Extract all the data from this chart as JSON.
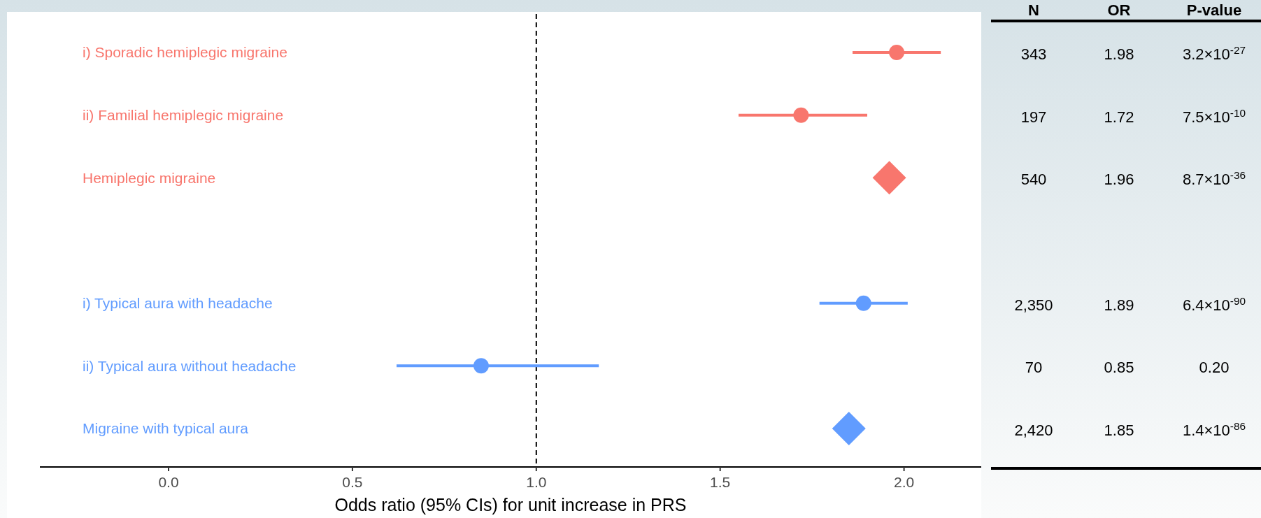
{
  "chart_data": {
    "type": "scatter",
    "orientation": "horizontal",
    "xlabel": "Odds ratio (95% CIs) for unit increase in PRS",
    "categories": [
      "i) Sporadic hemiplegic migraine",
      "ii) Familial hemiplegic migraine",
      "Hemiplegic migraine",
      null,
      "i) Typical aura with headache",
      "ii) Typical aura without headache",
      "Migraine with typical aura"
    ],
    "series": [
      {
        "marker": "circle",
        "colors": [
          "#f8766d",
          "#f8766d",
          null,
          null,
          "#619cff",
          "#619cff",
          null
        ],
        "values": [
          1.98,
          1.72,
          null,
          null,
          1.89,
          0.85,
          null
        ],
        "errors": [
          [
            1.86,
            2.1
          ],
          [
            1.55,
            1.9
          ],
          null,
          null,
          [
            1.77,
            2.01
          ],
          [
            0.62,
            1.17
          ],
          null
        ]
      },
      {
        "marker": "diamond",
        "colors": [
          null,
          null,
          "#f8766d",
          null,
          null,
          null,
          "#619cff"
        ],
        "values": [
          null,
          null,
          1.96,
          null,
          null,
          null,
          1.85
        ]
      }
    ],
    "xlim": [
      -0.35,
      2.21
    ],
    "xticks": [
      {
        "value": 0,
        "label": "0.0"
      },
      0.5,
      {
        "value": 1,
        "label": "1.0"
      },
      1.5,
      {
        "value": 2,
        "label": "2.0"
      }
    ],
    "ref_lines": [
      {
        "axis": "x",
        "value": 1,
        "line_style": "dashed",
        "color": "#000000"
      }
    ],
    "annotations": [
      "N",
      "OR",
      "P-value",
      "343",
      "1.98",
      "3.2×10$^{-27}$",
      "197",
      "1.72",
      "7.5×10$^{-10}$",
      "540",
      "1.96",
      "8.7×10$^{-36}$",
      "2,350",
      "1.89",
      "6.4×10$^{-90}$",
      "70",
      "0.85",
      "0.20",
      "2,420",
      "1.85",
      "1.4×10$^{-86}$"
    ]
  }
}
